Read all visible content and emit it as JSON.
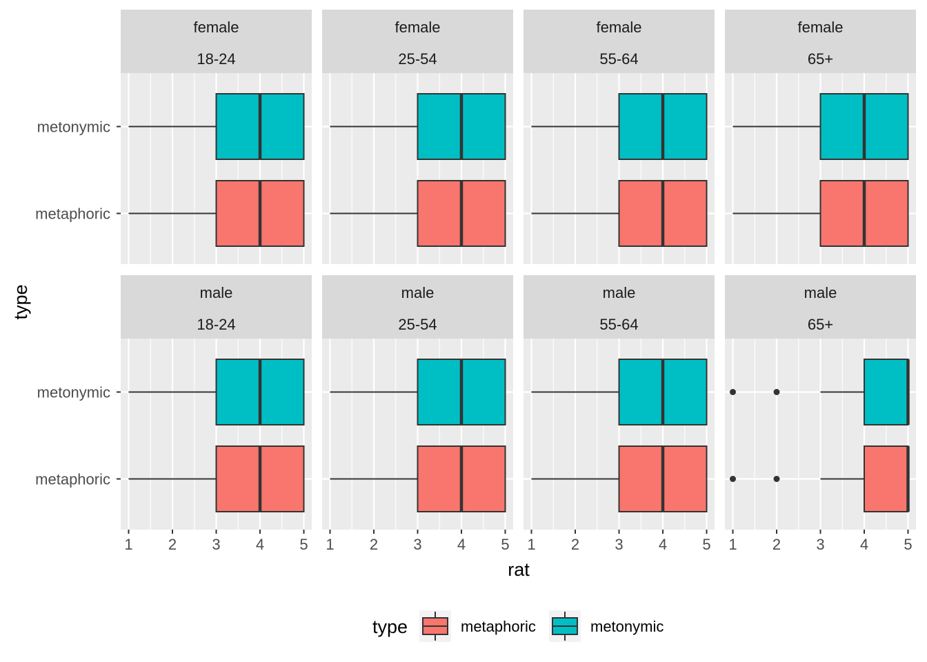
{
  "chart_data": {
    "type": "boxplot",
    "orientation": "horizontal",
    "xlabel": "rat",
    "ylabel": "type",
    "xlim": [
      1,
      5
    ],
    "xticks": [
      "1",
      "2",
      "3",
      "4",
      "5"
    ],
    "categories": [
      "metaphoric",
      "metonymic"
    ],
    "facet_rows": [
      "female",
      "male"
    ],
    "facet_cols": [
      "18-24",
      "25-54",
      "55-64",
      "65+"
    ],
    "legend": {
      "title": "type",
      "position": "bottom",
      "entries": [
        {
          "label": "metaphoric",
          "color": "#F8766D"
        },
        {
          "label": "metonymic",
          "color": "#00BFC4"
        }
      ]
    },
    "grid": true,
    "panels": [
      {
        "row": "female",
        "col": "18-24",
        "boxes": [
          {
            "type": "metaphoric",
            "whisker_low": 1,
            "q1": 3,
            "median": 4,
            "q3": 5,
            "whisker_high": 5,
            "outliers": []
          },
          {
            "type": "metonymic",
            "whisker_low": 1,
            "q1": 3,
            "median": 4,
            "q3": 5,
            "whisker_high": 5,
            "outliers": []
          }
        ]
      },
      {
        "row": "female",
        "col": "25-54",
        "boxes": [
          {
            "type": "metaphoric",
            "whisker_low": 1,
            "q1": 3,
            "median": 4,
            "q3": 5,
            "whisker_high": 5,
            "outliers": []
          },
          {
            "type": "metonymic",
            "whisker_low": 1,
            "q1": 3,
            "median": 4,
            "q3": 5,
            "whisker_high": 5,
            "outliers": []
          }
        ]
      },
      {
        "row": "female",
        "col": "55-64",
        "boxes": [
          {
            "type": "metaphoric",
            "whisker_low": 1,
            "q1": 3,
            "median": 4,
            "q3": 5,
            "whisker_high": 5,
            "outliers": []
          },
          {
            "type": "metonymic",
            "whisker_low": 1,
            "q1": 3,
            "median": 4,
            "q3": 5,
            "whisker_high": 5,
            "outliers": []
          }
        ]
      },
      {
        "row": "female",
        "col": "65+",
        "boxes": [
          {
            "type": "metaphoric",
            "whisker_low": 1,
            "q1": 3,
            "median": 4,
            "q3": 5,
            "whisker_high": 5,
            "outliers": []
          },
          {
            "type": "metonymic",
            "whisker_low": 1,
            "q1": 3,
            "median": 4,
            "q3": 5,
            "whisker_high": 5,
            "outliers": []
          }
        ]
      },
      {
        "row": "male",
        "col": "18-24",
        "boxes": [
          {
            "type": "metaphoric",
            "whisker_low": 1,
            "q1": 3,
            "median": 4,
            "q3": 5,
            "whisker_high": 5,
            "outliers": []
          },
          {
            "type": "metonymic",
            "whisker_low": 1,
            "q1": 3,
            "median": 4,
            "q3": 5,
            "whisker_high": 5,
            "outliers": []
          }
        ]
      },
      {
        "row": "male",
        "col": "25-54",
        "boxes": [
          {
            "type": "metaphoric",
            "whisker_low": 1,
            "q1": 3,
            "median": 4,
            "q3": 5,
            "whisker_high": 5,
            "outliers": []
          },
          {
            "type": "metonymic",
            "whisker_low": 1,
            "q1": 3,
            "median": 4,
            "q3": 5,
            "whisker_high": 5,
            "outliers": []
          }
        ]
      },
      {
        "row": "male",
        "col": "55-64",
        "boxes": [
          {
            "type": "metaphoric",
            "whisker_low": 1,
            "q1": 3,
            "median": 4,
            "q3": 5,
            "whisker_high": 5,
            "outliers": []
          },
          {
            "type": "metonymic",
            "whisker_low": 1,
            "q1": 3,
            "median": 4,
            "q3": 5,
            "whisker_high": 5,
            "outliers": []
          }
        ]
      },
      {
        "row": "male",
        "col": "65+",
        "boxes": [
          {
            "type": "metaphoric",
            "whisker_low": 3,
            "q1": 4,
            "median": 5,
            "q3": 5,
            "whisker_high": 5,
            "outliers": [
              1,
              2
            ]
          },
          {
            "type": "metonymic",
            "whisker_low": 3,
            "q1": 4,
            "median": 5,
            "q3": 5,
            "whisker_high": 5,
            "outliers": [
              1,
              2
            ]
          }
        ]
      }
    ]
  }
}
